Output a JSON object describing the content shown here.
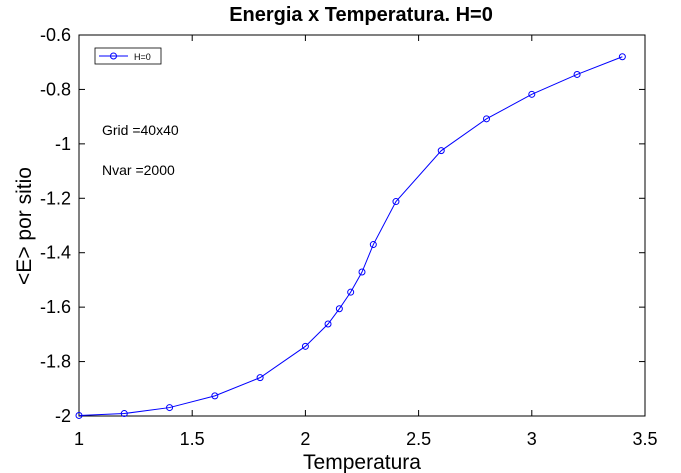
{
  "chart_data": {
    "type": "line",
    "title": "Energia x Temperatura. H=0",
    "xlabel": "Temperatura",
    "ylabel": "<E> por sitio",
    "xlim": [
      1,
      3.5
    ],
    "ylim": [
      -2,
      -0.6
    ],
    "xticks": [
      1,
      1.5,
      2,
      2.5,
      3,
      3.5
    ],
    "xtick_labels": [
      "1",
      "1.5",
      "2",
      "2.5",
      "3",
      "3.5"
    ],
    "yticks": [
      -2,
      -1.8,
      -1.6,
      -1.4,
      -1.2,
      -1,
      -0.8,
      -0.6
    ],
    "ytick_labels": [
      "-2",
      "-1.8",
      "-1.6",
      "-1.4",
      "-1.2",
      "-1",
      "-0.8",
      "-0.6"
    ],
    "grid": false,
    "legend_position": "top-left",
    "annotations": [
      "Grid =40x40",
      "Nvar =2000"
    ],
    "series": [
      {
        "name": "H=0",
        "color": "#0000ff",
        "marker": "circle",
        "x": [
          1.0,
          1.2,
          1.4,
          1.6,
          1.8,
          2.0,
          2.1,
          2.15,
          2.2,
          2.25,
          2.3,
          2.4,
          2.6,
          2.8,
          3.0,
          3.2,
          3.4
        ],
        "y": [
          -1.998,
          -1.991,
          -1.969,
          -1.926,
          -1.859,
          -1.744,
          -1.662,
          -1.606,
          -1.545,
          -1.471,
          -1.37,
          -1.212,
          -1.025,
          -0.908,
          -0.818,
          -0.745,
          -0.68
        ]
      }
    ]
  }
}
